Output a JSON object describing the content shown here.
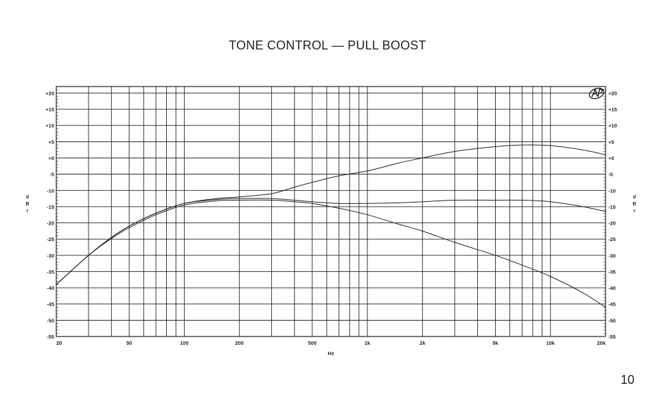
{
  "page": {
    "title": "TONE CONTROL — PULL BOOST",
    "number": "10"
  },
  "chart_data": {
    "type": "line",
    "title": "",
    "xlabel": "Hz",
    "ylabel": "d B r",
    "x_scale": "log",
    "xlim": [
      20,
      20000
    ],
    "ylim": [
      -55,
      22
    ],
    "x_tick_labels": [
      "20",
      "50",
      "100",
      "200",
      "500",
      "1k",
      "2k",
      "5k",
      "10k",
      "20k"
    ],
    "x_tick_values": [
      20,
      50,
      100,
      200,
      500,
      1000,
      2000,
      5000,
      10000,
      20000
    ],
    "y_tick_labels": [
      "+20",
      "+15",
      "+10",
      "+5",
      "+0",
      "-5",
      "-10",
      "-15",
      "-20",
      "-25",
      "-30",
      "-35",
      "-40",
      "-45",
      "-50",
      "-55"
    ],
    "y_tick_values": [
      20,
      15,
      10,
      5,
      0,
      -5,
      -10,
      -15,
      -20,
      -25,
      -30,
      -35,
      -40,
      -45,
      -50,
      -55
    ],
    "grid": true,
    "logo": "ap-logo",
    "line_color": "#231f20",
    "series": [
      {
        "x": [
          20,
          30,
          40,
          50,
          70,
          100,
          150,
          200,
          300,
          400,
          500,
          700,
          1000,
          1500,
          2000,
          3000,
          5000,
          7000,
          10000,
          15000,
          20000
        ],
        "y": [
          -39,
          -30,
          -24.5,
          -21,
          -17,
          -14,
          -12.5,
          -12,
          -11,
          -9,
          -7.5,
          -5.5,
          -4,
          -1.5,
          0,
          2,
          3.5,
          4,
          3.8,
          2.5,
          1
        ]
      },
      {
        "x": [
          20,
          30,
          40,
          50,
          70,
          100,
          150,
          200,
          300,
          400,
          500,
          700,
          1000,
          1500,
          2000,
          3000,
          5000,
          7000,
          10000,
          15000,
          20000
        ],
        "y": [
          -39,
          -30,
          -24.5,
          -21,
          -17,
          -14,
          -12.8,
          -12.5,
          -12.5,
          -13,
          -13.5,
          -14,
          -14,
          -13.8,
          -13.5,
          -13,
          -13,
          -13,
          -13.5,
          -15,
          -16.5
        ]
      },
      {
        "x": [
          20,
          30,
          40,
          50,
          70,
          100,
          150,
          200,
          300,
          400,
          500,
          700,
          1000,
          1500,
          2000,
          3000,
          5000,
          7000,
          10000,
          15000,
          20000
        ],
        "y": [
          -39,
          -30,
          -24.8,
          -21.5,
          -17.5,
          -14.5,
          -13.2,
          -13,
          -13,
          -13.5,
          -14,
          -15.5,
          -17.5,
          -20.5,
          -22.5,
          -26,
          -30,
          -33,
          -36.5,
          -41.5,
          -46
        ]
      }
    ]
  }
}
